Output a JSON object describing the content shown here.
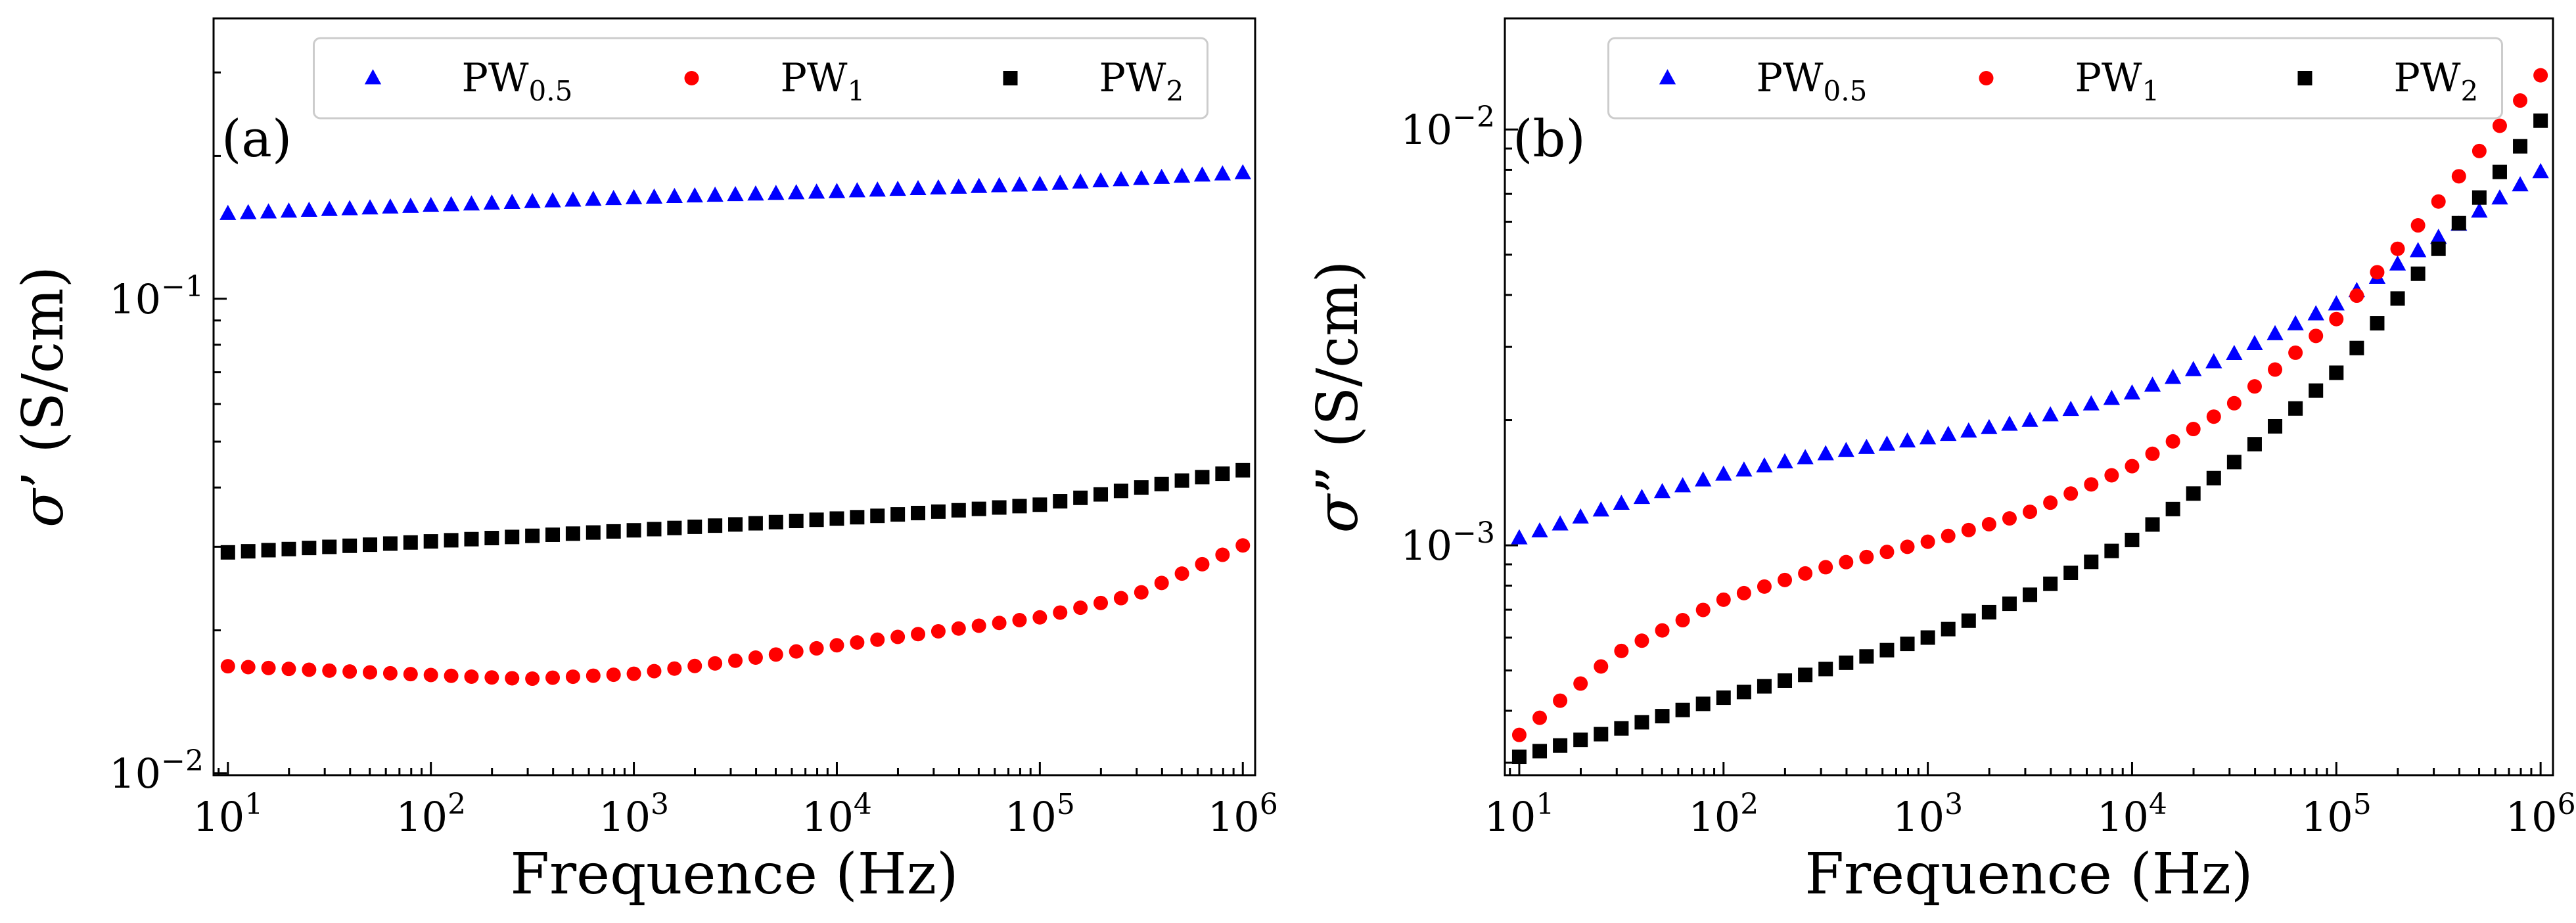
{
  "chart_data": [
    {
      "type": "scatter",
      "panel_label": "(a)",
      "xlabel": "Frequence (Hz)",
      "ylabel_symbol": "σ",
      "ylabel_prime": "’",
      "ylabel_unit": "(S/cm)",
      "x_scale": "log",
      "y_scale": "log",
      "xlim": [
        8.5,
        1150000
      ],
      "ylim": [
        0.0099,
        0.39
      ],
      "x_ticks": [
        {
          "base": "10",
          "exp": "1",
          "value": 10
        },
        {
          "base": "10",
          "exp": "2",
          "value": 100
        },
        {
          "base": "10",
          "exp": "3",
          "value": 1000
        },
        {
          "base": "10",
          "exp": "4",
          "value": 10000
        },
        {
          "base": "10",
          "exp": "5",
          "value": 100000
        },
        {
          "base": "10",
          "exp": "6",
          "value": 1000000
        }
      ],
      "y_ticks": [
        {
          "base": "10",
          "exp": "−2",
          "value": 0.01
        },
        {
          "base": "10",
          "exp": "−1",
          "value": 0.1
        }
      ],
      "legend_position": "top",
      "series": [
        {
          "name": "PW",
          "sub": "0.5",
          "marker": "triangle",
          "color": "#0000ff",
          "x": [
            10,
            100,
            1000,
            10000,
            100000,
            1000000
          ],
          "y": [
            0.151,
            0.157,
            0.163,
            0.168,
            0.174,
            0.184
          ]
        },
        {
          "name": "PW",
          "sub": "1",
          "marker": "circle",
          "color": "#ff0000",
          "x": [
            10,
            100,
            300,
            1000,
            3000,
            10000,
            100000,
            300000,
            1000000
          ],
          "y": [
            0.0168,
            0.0161,
            0.0158,
            0.0162,
            0.0172,
            0.0186,
            0.0213,
            0.0238,
            0.0302
          ]
        },
        {
          "name": "PW",
          "sub": "2",
          "marker": "square",
          "color": "#000000",
          "x": [
            10,
            100,
            1000,
            10000,
            100000,
            1000000
          ],
          "y": [
            0.0292,
            0.0308,
            0.0325,
            0.0344,
            0.0368,
            0.0435
          ]
        }
      ]
    },
    {
      "type": "scatter",
      "panel_label": "(b)",
      "xlabel": "Frequence (Hz)",
      "ylabel_symbol": "σ",
      "ylabel_prime": "”",
      "ylabel_unit": "(S/cm)",
      "x_scale": "log",
      "y_scale": "log",
      "xlim": [
        8.5,
        1150000
      ],
      "ylim": [
        0.00028,
        0.0185
      ],
      "x_ticks": [
        {
          "base": "10",
          "exp": "1",
          "value": 10
        },
        {
          "base": "10",
          "exp": "2",
          "value": 100
        },
        {
          "base": "10",
          "exp": "3",
          "value": 1000
        },
        {
          "base": "10",
          "exp": "4",
          "value": 10000
        },
        {
          "base": "10",
          "exp": "5",
          "value": 100000
        },
        {
          "base": "10",
          "exp": "6",
          "value": 1000000
        }
      ],
      "y_ticks": [
        {
          "base": "10",
          "exp": "−3",
          "value": 0.001
        },
        {
          "base": "10",
          "exp": "−2",
          "value": 0.01
        }
      ],
      "legend_position": "top",
      "series": [
        {
          "name": "PW",
          "sub": "0.5",
          "marker": "triangle",
          "color": "#0000ff",
          "x": [
            10,
            30,
            100,
            300,
            1000,
            3000,
            10000,
            30000,
            100000,
            300000,
            1000000
          ],
          "y": [
            0.00104,
            0.00125,
            0.00148,
            0.00165,
            0.00181,
            0.00198,
            0.00232,
            0.00285,
            0.0038,
            0.0054,
            0.0079
          ]
        },
        {
          "name": "PW",
          "sub": "1",
          "marker": "circle",
          "color": "#ff0000",
          "x": [
            10,
            30,
            100,
            300,
            1000,
            3000,
            10000,
            30000,
            100000,
            300000,
            1000000
          ],
          "y": [
            0.00035,
            0.00055,
            0.00074,
            0.00088,
            0.00102,
            0.00119,
            0.00155,
            0.00215,
            0.0035,
            0.0065,
            0.0135
          ]
        },
        {
          "name": "PW",
          "sub": "2",
          "marker": "square",
          "color": "#000000",
          "x": [
            10,
            30,
            100,
            300,
            1000,
            3000,
            10000,
            30000,
            100000,
            300000,
            1000000
          ],
          "y": [
            0.00031,
            0.00036,
            0.00043,
            0.0005,
            0.0006,
            0.00075,
            0.00103,
            0.00155,
            0.0026,
            0.005,
            0.0105
          ]
        }
      ]
    }
  ]
}
